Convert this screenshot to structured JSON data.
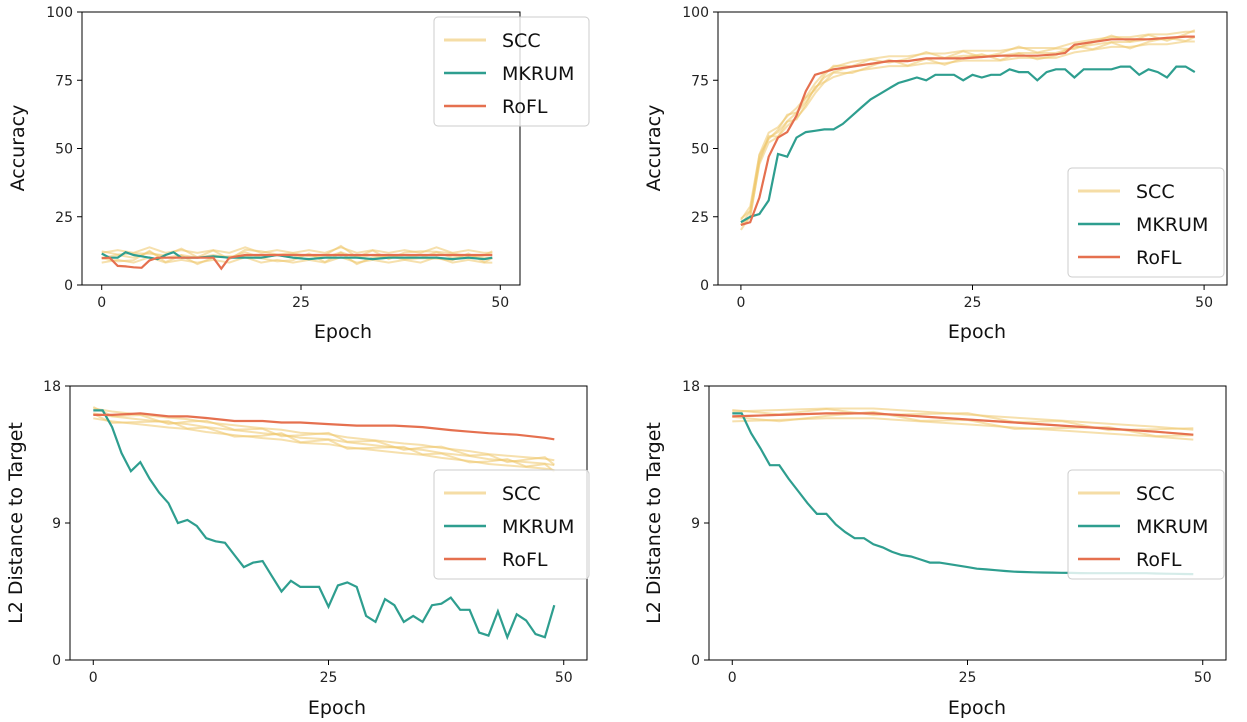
{
  "colors": {
    "SCC": "#EFC76A",
    "MKRUM": "#2E9E8F",
    "RoFL": "#E5704F"
  },
  "chart_data": [
    {
      "type": "line",
      "xlabel": "Epoch",
      "ylabel": "Accuracy",
      "xlim": [
        0,
        50
      ],
      "ylim": [
        0,
        100
      ],
      "xticks": [
        "0",
        "25",
        "50"
      ],
      "yticks": [
        "0",
        "25",
        "50",
        "75",
        "100"
      ],
      "legend": "top-right",
      "series": [
        {
          "name": "SCC",
          "x": [
            0,
            2,
            4,
            6,
            8,
            10,
            12,
            14,
            16,
            18,
            20,
            22,
            24,
            26,
            28,
            30,
            32,
            34,
            36,
            38,
            40,
            42,
            44,
            46,
            48,
            49
          ],
          "values": [
            10,
            11,
            10,
            12,
            10,
            11,
            10,
            11,
            10,
            12,
            10,
            11,
            10,
            11,
            10,
            12,
            10,
            11,
            10,
            11,
            10,
            12,
            10,
            11,
            10,
            10
          ]
        },
        {
          "name": "MKRUM",
          "x": [
            0,
            1,
            2,
            3,
            4,
            5,
            6,
            7,
            8,
            9,
            10,
            12,
            14,
            16,
            18,
            20,
            22,
            24,
            26,
            28,
            30,
            32,
            34,
            36,
            38,
            40,
            42,
            44,
            46,
            48,
            49
          ],
          "values": [
            11.5,
            10,
            10,
            12,
            11,
            10.5,
            10,
            9.5,
            11,
            12,
            10,
            10,
            10.5,
            10,
            10,
            10,
            11,
            10,
            9.5,
            10,
            10,
            10,
            9.5,
            10,
            10,
            10,
            10,
            9.5,
            10,
            9.5,
            10
          ]
        },
        {
          "name": "RoFL",
          "x": [
            0,
            1,
            2,
            3,
            4,
            5,
            6,
            7,
            8,
            9,
            10,
            12,
            14,
            15,
            16,
            17,
            18,
            20,
            22,
            24,
            26,
            28,
            30,
            32,
            34,
            36,
            38,
            40,
            42,
            44,
            46,
            48,
            49
          ],
          "values": [
            9.8,
            10,
            7,
            6.8,
            6.5,
            6.3,
            9,
            10,
            10,
            10,
            10,
            10,
            10,
            6,
            10,
            10.5,
            11,
            11,
            11,
            11,
            11,
            11,
            11,
            11,
            11,
            11,
            11,
            11,
            11,
            11,
            11,
            11,
            11
          ]
        }
      ]
    },
    {
      "type": "line",
      "xlabel": "Epoch",
      "ylabel": "Accuracy",
      "xlim": [
        0,
        50
      ],
      "ylim": [
        0,
        100
      ],
      "xticks": [
        "0",
        "25",
        "50"
      ],
      "yticks": [
        "0",
        "25",
        "50",
        "75",
        "100"
      ],
      "legend": "bottom-right",
      "series": [
        {
          "name": "SCC",
          "x": [
            0,
            1,
            2,
            3,
            4,
            5,
            6,
            7,
            8,
            9,
            10,
            12,
            14,
            16,
            18,
            20,
            22,
            24,
            26,
            28,
            30,
            32,
            34,
            36,
            38,
            40,
            42,
            44,
            46,
            48,
            49
          ],
          "values": [
            22,
            27,
            46,
            54,
            56,
            60,
            63,
            67,
            72,
            76,
            78,
            80,
            81,
            82,
            82,
            83,
            83,
            84,
            84,
            84,
            85,
            85,
            85,
            87,
            88,
            89,
            89,
            90,
            90,
            91,
            91
          ]
        },
        {
          "name": "MKRUM",
          "x": [
            0,
            1,
            2,
            3,
            4,
            5,
            6,
            7,
            8,
            9,
            10,
            11,
            12,
            13,
            14,
            15,
            16,
            17,
            18,
            19,
            20,
            21,
            22,
            23,
            24,
            25,
            26,
            27,
            28,
            29,
            30,
            31,
            32,
            33,
            34,
            35,
            36,
            37,
            38,
            39,
            40,
            41,
            42,
            43,
            44,
            45,
            46,
            47,
            48,
            49
          ],
          "values": [
            23,
            25,
            26,
            31,
            48,
            47,
            54,
            56,
            56.5,
            57,
            57,
            59,
            62,
            65,
            68,
            70,
            72,
            74,
            75,
            76,
            75,
            77,
            77,
            77,
            75,
            77,
            76,
            77,
            77,
            79,
            78,
            78,
            75,
            78,
            79,
            79,
            76,
            79,
            79,
            79,
            79,
            80,
            80,
            77,
            79,
            78,
            76,
            80,
            80,
            78
          ]
        },
        {
          "name": "RoFL",
          "x": [
            0,
            1,
            2,
            3,
            4,
            5,
            6,
            7,
            8,
            9,
            10,
            12,
            14,
            16,
            18,
            20,
            22,
            24,
            26,
            28,
            30,
            32,
            34,
            35,
            36,
            38,
            40,
            42,
            44,
            46,
            48,
            49
          ],
          "values": [
            22,
            23,
            32,
            47,
            54,
            56,
            62,
            71,
            77,
            78,
            79,
            80,
            81,
            82,
            82,
            83,
            83,
            83,
            83.5,
            84,
            84,
            84,
            84.5,
            85,
            88,
            89,
            90,
            90,
            90,
            90.5,
            91,
            91
          ]
        }
      ]
    },
    {
      "type": "line",
      "xlabel": "Epoch",
      "ylabel": "L2 Distance to Target",
      "xlim": [
        0,
        50
      ],
      "ylim": [
        0,
        18
      ],
      "xticks": [
        "0",
        "25",
        "50"
      ],
      "yticks": [
        "0",
        "9",
        "18"
      ],
      "legend": "right",
      "series": [
        {
          "name": "SCC",
          "x": [
            0,
            2,
            5,
            8,
            10,
            12,
            15,
            18,
            20,
            22,
            25,
            27,
            30,
            33,
            35,
            37,
            40,
            42,
            44,
            46,
            48,
            49
          ],
          "values": [
            16.2,
            16.0,
            15.8,
            15.6,
            15.5,
            15.3,
            15.1,
            14.9,
            14.8,
            14.6,
            14.5,
            14.3,
            14.1,
            13.9,
            13.8,
            13.6,
            13.4,
            13.2,
            13.1,
            13.0,
            12.9,
            12.8
          ]
        },
        {
          "name": "MKRUM",
          "x": [
            0,
            1,
            2,
            3,
            4,
            5,
            6,
            7,
            8,
            9,
            10,
            11,
            12,
            13,
            14,
            15,
            16,
            17,
            18,
            19,
            20,
            21,
            22,
            23,
            24,
            25,
            26,
            27,
            28,
            29,
            30,
            31,
            32,
            33,
            34,
            35,
            36,
            37,
            38,
            39,
            40,
            41,
            42,
            43,
            44,
            45,
            46,
            47,
            48,
            49
          ],
          "values": [
            16.4,
            16.4,
            15.3,
            13.6,
            12.4,
            13.0,
            11.9,
            11.0,
            10.3,
            9.0,
            9.2,
            8.8,
            8.0,
            7.8,
            7.7,
            6.9,
            6.1,
            6.4,
            6.5,
            5.5,
            4.5,
            5.2,
            4.8,
            4.8,
            4.8,
            3.5,
            4.9,
            5.1,
            4.8,
            2.9,
            2.5,
            4.0,
            3.6,
            2.5,
            2.9,
            2.5,
            3.6,
            3.7,
            4.1,
            3.3,
            3.3,
            1.8,
            1.6,
            3.2,
            1.5,
            3.0,
            2.6,
            1.7,
            1.5,
            3.6
          ]
        },
        {
          "name": "RoFL",
          "x": [
            0,
            2,
            5,
            8,
            10,
            12,
            15,
            18,
            20,
            22,
            25,
            28,
            30,
            32,
            35,
            38,
            40,
            42,
            45,
            48,
            49
          ],
          "values": [
            16.1,
            16.1,
            16.2,
            16.0,
            16.0,
            15.9,
            15.7,
            15.7,
            15.6,
            15.6,
            15.5,
            15.4,
            15.4,
            15.4,
            15.3,
            15.1,
            15.0,
            14.9,
            14.8,
            14.6,
            14.5
          ]
        }
      ]
    },
    {
      "type": "line",
      "xlabel": "Epoch",
      "ylabel": "L2 Distance to Target",
      "xlim": [
        0,
        50
      ],
      "ylim": [
        0,
        18
      ],
      "xticks": [
        "0",
        "25",
        "50"
      ],
      "yticks": [
        "0",
        "9",
        "18"
      ],
      "legend": "right",
      "series": [
        {
          "name": "SCC",
          "x": [
            0,
            5,
            10,
            15,
            20,
            25,
            30,
            35,
            40,
            45,
            49
          ],
          "values": [
            16.0,
            16.1,
            16.2,
            16.2,
            16.0,
            15.8,
            15.6,
            15.4,
            15.2,
            15.0,
            14.8
          ]
        },
        {
          "name": "MKRUM",
          "x": [
            0,
            1,
            2,
            3,
            4,
            5,
            6,
            7,
            8,
            9,
            10,
            11,
            12,
            13,
            14,
            15,
            16,
            17,
            18,
            19,
            20,
            21,
            22,
            23,
            24,
            25,
            26,
            27,
            28,
            29,
            30,
            31,
            32,
            33,
            34,
            35,
            36,
            37,
            38,
            39,
            40,
            41,
            42,
            43,
            44,
            45,
            46,
            47,
            48,
            49
          ],
          "values": [
            16.2,
            16.2,
            14.9,
            13.9,
            12.8,
            12.8,
            11.9,
            11.1,
            10.3,
            9.6,
            9.6,
            8.9,
            8.4,
            8.0,
            8.0,
            7.6,
            7.4,
            7.1,
            6.9,
            6.8,
            6.6,
            6.4,
            6.4,
            6.3,
            6.2,
            6.1,
            6.0,
            5.95,
            5.9,
            5.85,
            5.8,
            5.78,
            5.76,
            5.75,
            5.74,
            5.73,
            5.72,
            5.71,
            5.7,
            5.7,
            5.7,
            5.7,
            5.7,
            5.7,
            5.7,
            5.68,
            5.67,
            5.66,
            5.65,
            5.64
          ]
        },
        {
          "name": "RoFL",
          "x": [
            0,
            5,
            10,
            15,
            20,
            25,
            30,
            35,
            40,
            45,
            49
          ],
          "values": [
            16.0,
            16.1,
            16.2,
            16.2,
            16.0,
            15.8,
            15.6,
            15.4,
            15.2,
            15.0,
            14.8
          ]
        }
      ]
    }
  ]
}
